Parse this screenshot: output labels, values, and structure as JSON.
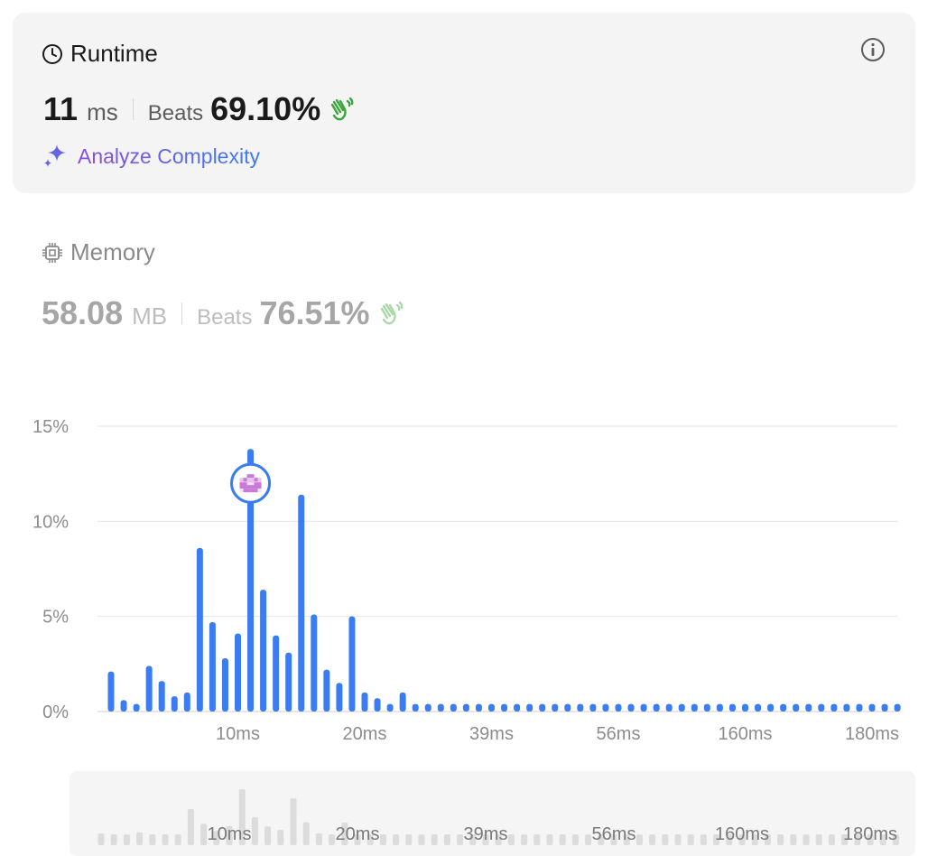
{
  "runtime": {
    "title": "Runtime",
    "value": "11",
    "unit": "ms",
    "beats_label": "Beats",
    "beats_value": "69.10%",
    "analyze_label": "Analyze Complexity"
  },
  "memory": {
    "title": "Memory",
    "value": "58.08",
    "unit": "MB",
    "beats_label": "Beats",
    "beats_value": "76.51%"
  },
  "colors": {
    "bar": "#3b7cf0",
    "clap_active": "#3aa63a",
    "clap_inactive": "#a9d9a9",
    "mini_bar": "#dcdcdc",
    "grid": "#e6e6e6"
  },
  "chart_data": {
    "type": "bar",
    "ylabel_ticks": [
      "15%",
      "10%",
      "5%",
      "0%"
    ],
    "ylim": [
      0,
      15
    ],
    "grid": true,
    "x_tick_labels": [
      "10ms",
      "20ms",
      "39ms",
      "56ms",
      "160ms",
      "180ms"
    ],
    "x_tick_bar_index": [
      10,
      20,
      30,
      40,
      50,
      60
    ],
    "selected_bar_index": 11,
    "values": [
      2.1,
      0.6,
      0.4,
      2.4,
      1.6,
      0.8,
      1.0,
      8.6,
      4.7,
      2.8,
      4.1,
      13.8,
      6.4,
      4.0,
      3.1,
      11.4,
      5.1,
      2.2,
      1.5,
      5.0,
      1.0,
      0.7,
      0.4,
      1.0,
      0.4,
      0.4,
      0.4,
      0.4,
      0.4,
      0.4,
      0.4,
      0.4,
      0.4,
      0.4,
      0.4,
      0.4,
      0.4,
      0.4,
      0.4,
      0.4,
      0.4,
      0.4,
      0.4,
      0.4,
      0.4,
      0.4,
      0.4,
      0.4,
      0.4,
      0.4,
      0.4,
      0.4,
      0.4,
      0.4,
      0.4,
      0.4,
      0.4,
      0.4,
      0.4,
      0.4,
      0.4,
      0.4,
      0.4
    ]
  }
}
